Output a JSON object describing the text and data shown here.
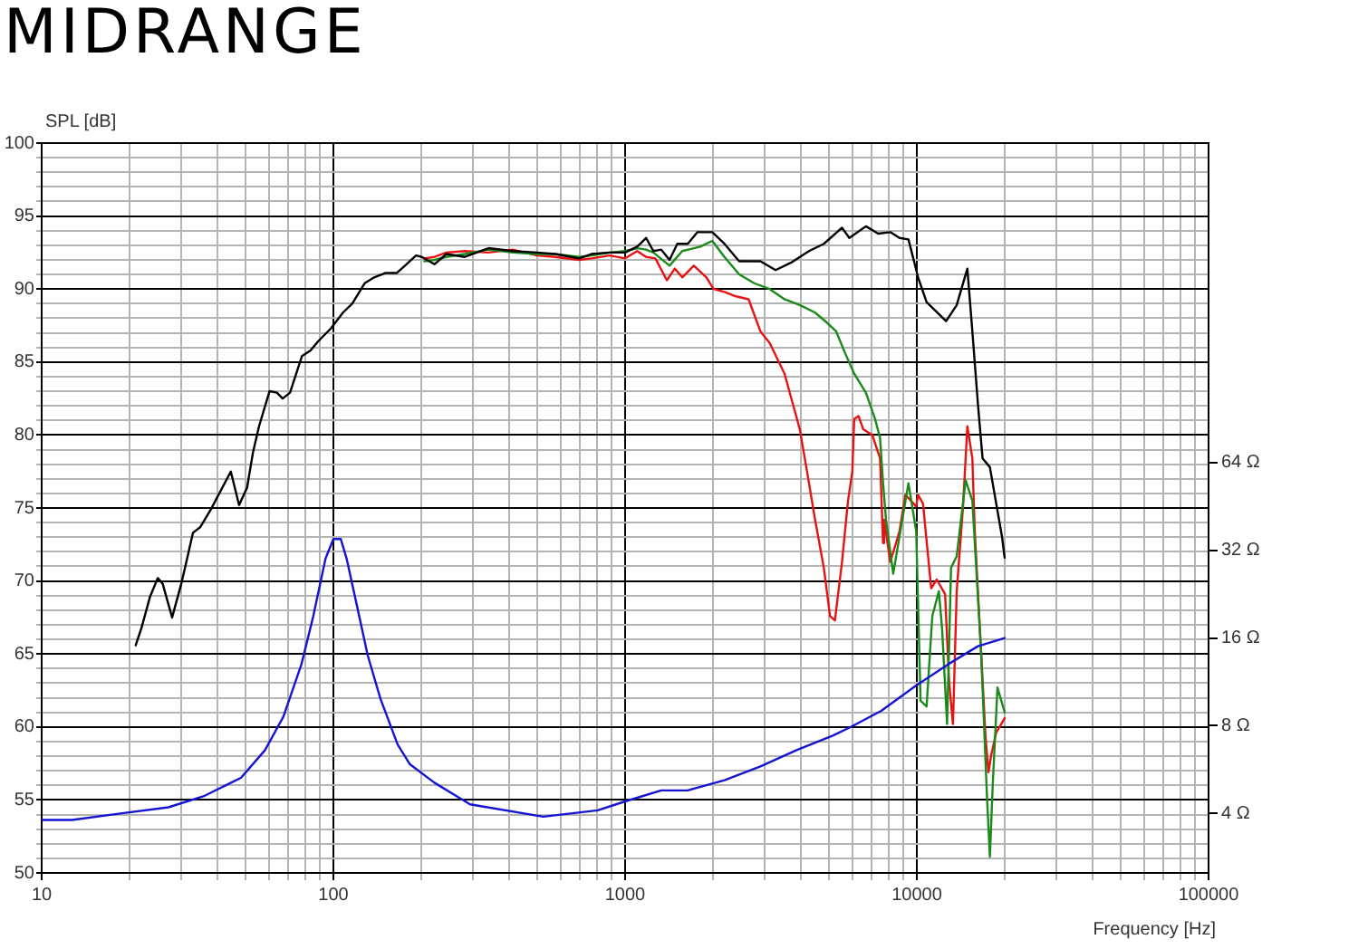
{
  "chart_data": [
    {
      "type": "line",
      "title": "MIDRANGE",
      "xlabel": "Frequency [Hz]",
      "ylabel": "SPL [dB]",
      "series": [
        {
          "color": "#000000",
          "x": [
            21,
            22,
            23.5,
            25,
            26,
            28,
            30,
            31,
            33,
            35,
            38,
            44.5,
            47.5,
            50.6,
            53,
            55.6,
            60.4,
            64,
            67,
            71,
            78,
            83.5,
            88.5,
            98,
            108,
            116,
            128,
            138,
            151,
            165,
            176,
            192,
            201,
            222,
            244,
            282,
            340,
            412,
            499,
            575,
            696,
            766,
            885,
            1000,
            1100,
            1180,
            1250,
            1330,
            1420,
            1510,
            1640,
            1770,
            1990,
            2190,
            2460,
            2910,
            3280,
            3700,
            4270,
            4800,
            5540,
            5870,
            6690,
            7370,
            8110,
            8720,
            9360,
            10100,
            10800,
            12600,
            13700,
            14900,
            15500,
            16200,
            16800,
            17800,
            19600,
            20000
          ],
          "values": [
            65.6,
            66.8,
            68.9,
            70.2,
            69.8,
            67.5,
            69.7,
            70.9,
            73.3,
            73.7,
            74.9,
            77.5,
            75.2,
            76.4,
            78.8,
            80.6,
            83.0,
            82.9,
            82.5,
            82.9,
            85.4,
            85.8,
            86.4,
            87.3,
            88.4,
            89.0,
            90.4,
            90.8,
            91.1,
            91.1,
            91.6,
            92.3,
            92.2,
            91.7,
            92.4,
            92.2,
            92.8,
            92.6,
            92.5,
            92.4,
            92.1,
            92.4,
            92.5,
            92.5,
            92.9,
            93.5,
            92.6,
            92.7,
            92.0,
            93.1,
            93.1,
            93.9,
            93.9,
            93.1,
            91.9,
            91.9,
            91.3,
            91.8,
            92.6,
            93.1,
            94.2,
            93.5,
            94.3,
            93.8,
            93.9,
            93.5,
            93.4,
            90.8,
            89.1,
            87.8,
            88.9,
            91.4,
            87.1,
            82.1,
            78.4,
            77.8,
            73.0,
            71.6
          ]
        },
        {
          "color": "#1a8a1a",
          "x": [
            205,
            222,
            244,
            282,
            340,
            412,
            499,
            575,
            696,
            766,
            885,
            1000,
            1100,
            1180,
            1250,
            1420,
            1570,
            1810,
            1990,
            2190,
            2460,
            2770,
            3130,
            3520,
            3970,
            4470,
            4920,
            5290,
            5680,
            6100,
            6690,
            7190,
            7480,
            7660,
            7840,
            8300,
            9360,
            9950,
            10300,
            10800,
            11300,
            11900,
            12200,
            12700,
            13100,
            13700,
            14700,
            15500,
            16600,
            17400,
            17800,
            18200,
            18900,
            20000
          ],
          "values": [
            91.9,
            92.0,
            92.2,
            92.4,
            92.7,
            92.5,
            92.4,
            92.4,
            92.2,
            92.3,
            92.5,
            92.6,
            92.8,
            92.7,
            92.5,
            91.6,
            92.6,
            92.9,
            93.3,
            92.2,
            91.0,
            90.4,
            90.0,
            89.3,
            88.9,
            88.4,
            87.7,
            87.1,
            85.6,
            84.2,
            82.9,
            81.1,
            79.8,
            76.7,
            74.2,
            70.5,
            76.7,
            73.4,
            61.8,
            61.4,
            67.6,
            69.3,
            66.8,
            60.2,
            70.9,
            71.7,
            76.9,
            75.5,
            65.2,
            55.2,
            51.1,
            56.0,
            62.7,
            61.0
          ]
        },
        {
          "color": "#e81212",
          "x": [
            205,
            222,
            244,
            282,
            340,
            412,
            499,
            575,
            696,
            766,
            885,
            1000,
            1100,
            1180,
            1270,
            1390,
            1480,
            1570,
            1720,
            1900,
            2010,
            2190,
            2400,
            2650,
            2910,
            3130,
            3520,
            3970,
            4270,
            4470,
            4800,
            5040,
            5240,
            5540,
            5810,
            6010,
            6100,
            6310,
            6550,
            7040,
            7480,
            7660,
            7720,
            8110,
            8720,
            9140,
            9950,
            10100,
            10500,
            11200,
            11700,
            12500,
            12900,
            13300,
            13700,
            14400,
            14900,
            15500,
            15800,
            16600,
            17200,
            17600,
            18000,
            18700,
            20000
          ],
          "values": [
            92.1,
            92.2,
            92.5,
            92.6,
            92.5,
            92.7,
            92.3,
            92.2,
            92.0,
            92.1,
            92.3,
            92.1,
            92.6,
            92.2,
            92.1,
            90.6,
            91.4,
            90.8,
            91.6,
            90.8,
            90.0,
            89.8,
            89.5,
            89.3,
            87.1,
            86.3,
            84.2,
            80.4,
            76.7,
            74.3,
            70.9,
            67.6,
            67.3,
            71.3,
            75.5,
            77.5,
            81.1,
            81.3,
            80.4,
            80.0,
            78.4,
            72.6,
            74.2,
            71.3,
            73.4,
            75.9,
            75.1,
            75.9,
            75.3,
            69.5,
            70.1,
            69.1,
            63.1,
            60.2,
            69.3,
            75.1,
            80.6,
            78.4,
            73.4,
            65.2,
            59.3,
            56.9,
            58.1,
            59.6,
            60.6
          ]
        }
      ],
      "xlim": [
        10,
        100000
      ],
      "ylim": [
        50,
        100
      ],
      "xticks": [
        10,
        {
          "value": 20,
          "label": null
        },
        {
          "value": 30,
          "label": null
        },
        {
          "value": 40,
          "label": null
        },
        {
          "value": 50,
          "label": null
        },
        {
          "value": 60,
          "label": null
        },
        {
          "value": 70,
          "label": null
        },
        {
          "value": 80,
          "label": null
        },
        {
          "value": 90,
          "label": null
        },
        100,
        {
          "value": 200,
          "label": null
        },
        {
          "value": 300,
          "label": null
        },
        {
          "value": 400,
          "label": null
        },
        {
          "value": 500,
          "label": null
        },
        {
          "value": 600,
          "label": null
        },
        {
          "value": 700,
          "label": null
        },
        {
          "value": 800,
          "label": null
        },
        {
          "value": 900,
          "label": null
        },
        1000,
        {
          "value": 2000,
          "label": null
        },
        {
          "value": 3000,
          "label": null
        },
        {
          "value": 4000,
          "label": null
        },
        {
          "value": 5000,
          "label": null
        },
        {
          "value": 6000,
          "label": null
        },
        {
          "value": 7000,
          "label": null
        },
        {
          "value": 8000,
          "label": null
        },
        {
          "value": 9000,
          "label": null
        },
        10000,
        {
          "value": 20000,
          "label": null
        },
        {
          "value": 30000,
          "label": null
        },
        {
          "value": 40000,
          "label": null
        },
        {
          "value": 50000,
          "label": null
        },
        {
          "value": 60000,
          "label": null
        },
        {
          "value": 70000,
          "label": null
        },
        {
          "value": 80000,
          "label": null
        },
        {
          "value": 90000,
          "label": null
        },
        100000
      ],
      "yticks": [
        50,
        {
          "value": 51,
          "label": null
        },
        {
          "value": 52,
          "label": null
        },
        {
          "value": 53,
          "label": null
        },
        {
          "value": 54,
          "label": null
        },
        55,
        {
          "value": 56,
          "label": null
        },
        {
          "value": 57,
          "label": null
        },
        {
          "value": 58,
          "label": null
        },
        {
          "value": 59,
          "label": null
        },
        60,
        {
          "value": 61,
          "label": null
        },
        {
          "value": 62,
          "label": null
        },
        {
          "value": 63,
          "label": null
        },
        {
          "value": 64,
          "label": null
        },
        65,
        {
          "value": 66,
          "label": null
        },
        {
          "value": 67,
          "label": null
        },
        {
          "value": 68,
          "label": null
        },
        {
          "value": 69,
          "label": null
        },
        70,
        {
          "value": 71,
          "label": null
        },
        {
          "value": 72,
          "label": null
        },
        {
          "value": 73,
          "label": null
        },
        {
          "value": 74,
          "label": null
        },
        75,
        {
          "value": 76,
          "label": null
        },
        {
          "value": 77,
          "label": null
        },
        {
          "value": 78,
          "label": null
        },
        {
          "value": 79,
          "label": null
        },
        80,
        {
          "value": 81,
          "label": null
        },
        {
          "value": 82,
          "label": null
        },
        {
          "value": 83,
          "label": null
        },
        {
          "value": 84,
          "label": null
        },
        85,
        {
          "value": 86,
          "label": null
        },
        {
          "value": 87,
          "label": null
        },
        {
          "value": 88,
          "label": null
        },
        {
          "value": 89,
          "label": null
        },
        90,
        {
          "value": 91,
          "label": null
        },
        {
          "value": 92,
          "label": null
        },
        {
          "value": 93,
          "label": null
        },
        {
          "value": 94,
          "label": null
        },
        95,
        {
          "value": 96,
          "label": null
        },
        {
          "value": 97,
          "label": null
        },
        {
          "value": 98,
          "label": null
        },
        {
          "value": 99,
          "label": null
        },
        100
      ],
      "grid": true,
      "log": "x"
    },
    {
      "type": "line",
      "series": [
        {
          "color": "#1414d2",
          "x": [
            10,
            12.7,
            18.6,
            27.2,
            36.2,
            48.2,
            58.3,
            67.4,
            77.7,
            85.3,
            94,
            100,
            106,
            111,
            120,
            131,
            145,
            166,
            183,
            222,
            294,
            524,
            805,
            1000,
            1330,
            1640,
            2190,
            2910,
            3870,
            5150,
            5900,
            7550,
            9950,
            12800,
            16200,
            20000
          ],
          "values": [
            3.8,
            3.8,
            4.0,
            4.2,
            4.6,
            5.3,
            6.6,
            8.6,
            13,
            19,
            30,
            35,
            35,
            30,
            21,
            14,
            9.9,
            6.9,
            5.9,
            5.1,
            4.3,
            3.9,
            4.1,
            4.4,
            4.8,
            4.8,
            5.2,
            5.8,
            6.6,
            7.4,
            7.9,
            9.0,
            11,
            13,
            15,
            16
          ]
        }
      ],
      "xlim": [
        10,
        100000
      ],
      "ylim": [
        2.5,
        800
      ],
      "yticks": [
        {
          "value": 4,
          "label": "4 Ω"
        },
        {
          "value": 8,
          "label": "8 Ω"
        },
        {
          "value": 16,
          "label": "16 Ω"
        },
        {
          "value": 32,
          "label": "32 Ω"
        },
        {
          "value": 64,
          "label": "64 Ω"
        }
      ],
      "log": "xy",
      "tick_labels": "y"
    }
  ]
}
